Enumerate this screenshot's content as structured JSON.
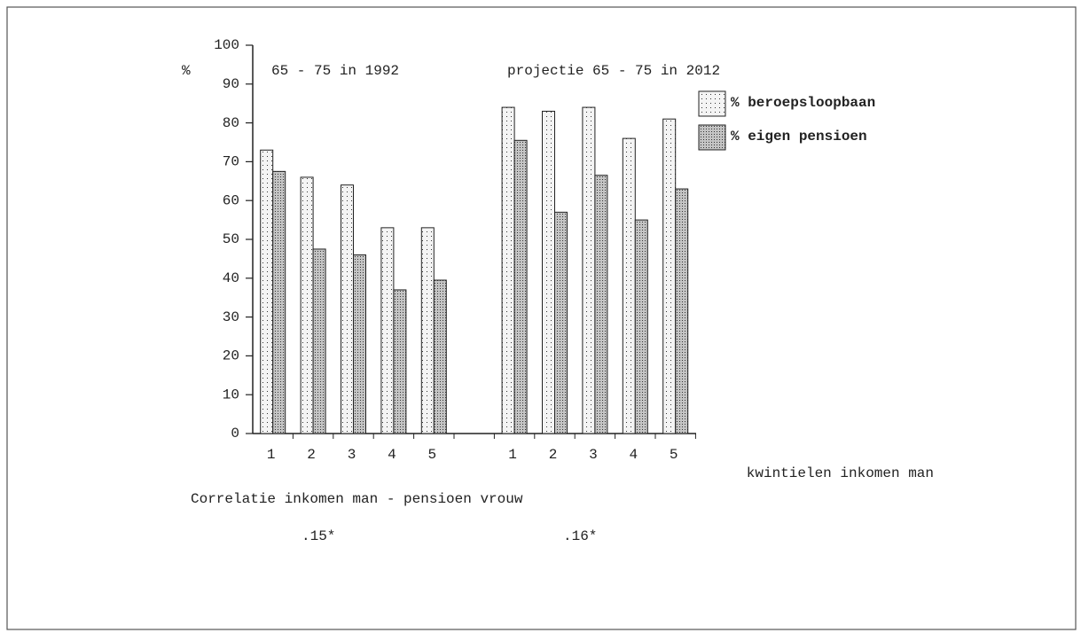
{
  "chart_data": {
    "type": "bar",
    "ylabel": "%",
    "xlabel": "kwintielen inkomen man",
    "annotations": [
      "65 - 75 in 1992",
      "projectie 65 - 75 in 2012",
      "Correlatie inkomen man - pensioen vrouw",
      ".15*",
      ".16*"
    ],
    "categories": [
      "1",
      "2",
      "3",
      "4",
      "5",
      null,
      "1",
      "2",
      "3",
      "4",
      "5"
    ],
    "series": [
      {
        "name": "% beroepsloopbaan",
        "color": "#f4f4f4",
        "values": [
          73,
          66,
          64,
          53,
          53,
          null,
          84,
          83,
          84,
          76,
          81
        ]
      },
      {
        "name": "% eigen pensioen",
        "color": "#c4c4c4",
        "values": [
          67.5,
          47.5,
          46,
          37,
          39.5,
          null,
          75.5,
          57,
          66.5,
          55,
          63
        ]
      }
    ],
    "ylim": [
      0,
      100
    ],
    "yticks": [
      0,
      10,
      20,
      30,
      40,
      50,
      60,
      70,
      80,
      90,
      100
    ],
    "grid": false,
    "legend": "top-right"
  }
}
